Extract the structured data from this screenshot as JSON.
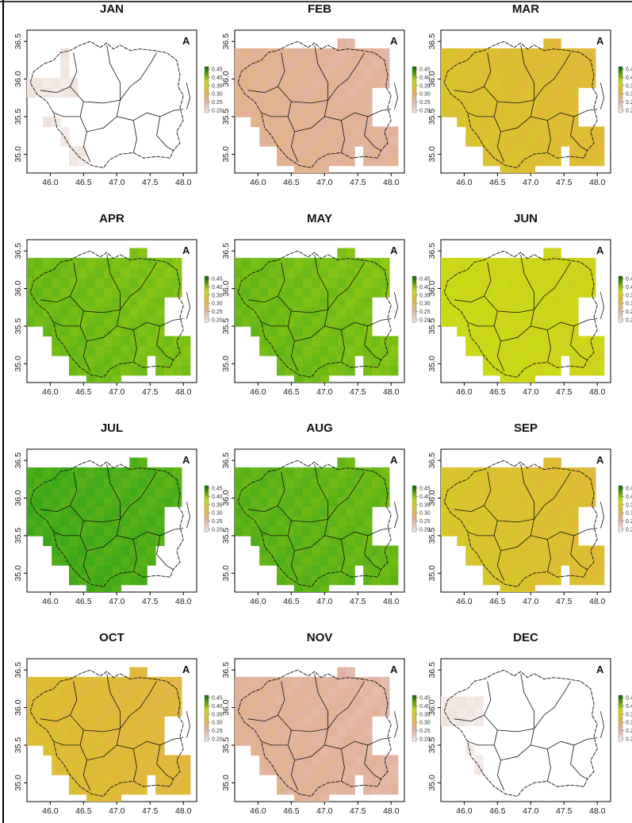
{
  "colors": {
    "scale_low": "#f3ece8",
    "scale_lowmid": "#e2b2a0",
    "scale_mid": "#e1b83a",
    "scale_midhigh": "#c8dc14",
    "scale_high": "#1a9a1a",
    "legend_dark_green": "#006400"
  },
  "chart_data": {
    "type": "heatmap",
    "x_ticks": [
      "46.0",
      "46.5",
      "47.0",
      "47.5",
      "48.0"
    ],
    "y_ticks": [
      "35.0",
      "35.5",
      "36.0",
      "36.5"
    ],
    "xlim": [
      45.65,
      48.2
    ],
    "ylim": [
      34.75,
      36.65
    ],
    "legend_ticks": [
      "0.45",
      "0.40",
      "0.35",
      "0.30",
      "0.25",
      "0.20"
    ],
    "legend_range": [
      0.2,
      0.45
    ],
    "north_arrow_label": "A",
    "panels": [
      {
        "title": "JAN",
        "base": 0.205,
        "gradient": 0.0,
        "coverage": "partial"
      },
      {
        "title": "FEB",
        "base": 0.262,
        "gradient": 0.008,
        "coverage": "full"
      },
      {
        "title": "MAR",
        "base": 0.325,
        "gradient": 0.01,
        "coverage": "full"
      },
      {
        "title": "APR",
        "base": 0.405,
        "gradient": 0.008,
        "coverage": "full"
      },
      {
        "title": "MAY",
        "base": 0.405,
        "gradient": 0.008,
        "coverage": "full"
      },
      {
        "title": "JUN",
        "base": 0.36,
        "gradient": 0.006,
        "coverage": "full"
      },
      {
        "title": "JUL",
        "base": 0.425,
        "gradient": 0.006,
        "coverage": "jul"
      },
      {
        "title": "AUG",
        "base": 0.415,
        "gradient": 0.006,
        "coverage": "full"
      },
      {
        "title": "SEP",
        "base": 0.328,
        "gradient": 0.012,
        "coverage": "full"
      },
      {
        "title": "OCT",
        "base": 0.318,
        "gradient": 0.01,
        "coverage": "full"
      },
      {
        "title": "NOV",
        "base": 0.258,
        "gradient": 0.008,
        "coverage": "full"
      },
      {
        "title": "DEC",
        "base": 0.205,
        "gradient": 0.0,
        "coverage": "partial"
      }
    ]
  }
}
